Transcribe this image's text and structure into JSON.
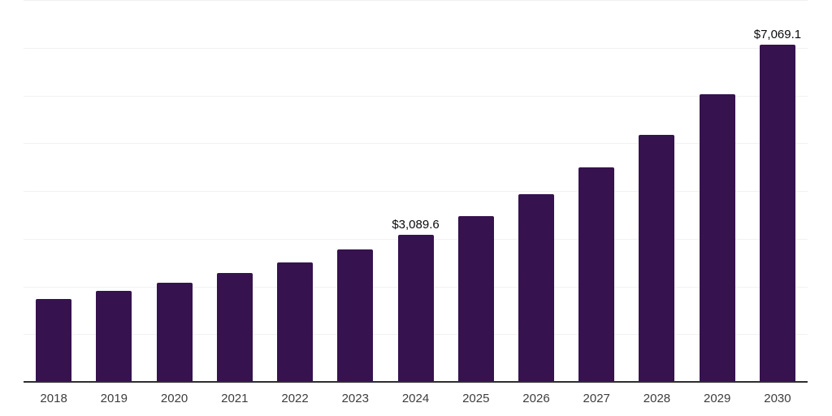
{
  "chart_data": {
    "type": "bar",
    "title": "",
    "categories": [
      "2018",
      "2019",
      "2020",
      "2021",
      "2022",
      "2023",
      "2024",
      "2025",
      "2026",
      "2027",
      "2028",
      "2029",
      "2030"
    ],
    "values": [
      1731,
      1901,
      2071,
      2281,
      2506,
      2780,
      3089.6,
      3472,
      3926,
      4494,
      5174,
      6026,
      7069.1
    ],
    "data_labels": [
      {
        "category": "2024",
        "text": "$3,089.6"
      },
      {
        "category": "2030",
        "text": "$7,069.1"
      }
    ],
    "xlabel": "",
    "ylabel": "",
    "ylim": [
      0,
      8000
    ],
    "gridline_step": 1000,
    "grid": "horizontal",
    "y_axis_labels_visible": false,
    "legend": "none",
    "colors": {
      "bar": "#36124e",
      "gridline": "#f1f1f1",
      "axis_line": "#2e2e2e",
      "tick_label": "#3d3d3d",
      "data_label": "#0a0a0a",
      "background": "#ffffff"
    }
  }
}
